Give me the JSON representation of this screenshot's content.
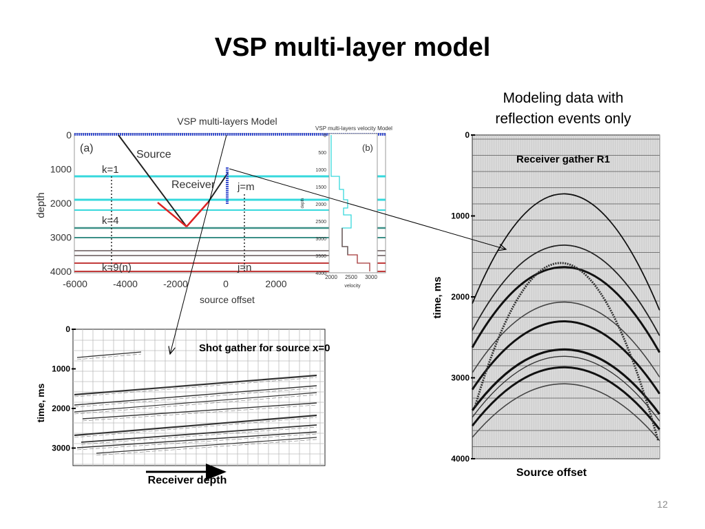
{
  "title": "VSP multi-layer model",
  "right_caption": {
    "line1": "Modeling data with",
    "line2": "reflection events only"
  },
  "page_number": "12",
  "model_plot": {
    "title": "VSP multi-layers Model",
    "panel_label": "(a)",
    "ylabel": "depth",
    "xlabel": "source offset",
    "y_ticks": [
      "0",
      "1000",
      "2000",
      "3000",
      "4000"
    ],
    "x_ticks": [
      "-6000",
      "-4000",
      "-2000",
      "0",
      "2000"
    ],
    "labels": {
      "source": "Source",
      "receiver": "Receiver",
      "k1": "k=1",
      "k4": "k=4",
      "k9": "k=9(n)",
      "jm": "j=m",
      "jn": "j=n"
    },
    "layer_colors": {
      "cyan": "#35d8dc",
      "teal": "#3a8f86",
      "gray": "#8a7f80",
      "red": "#c23a3a",
      "blue": "#3a4fcf"
    }
  },
  "velocity_plot": {
    "title": "VSP multi-layers velocity Model",
    "panel_label": "(b)",
    "ylabel": "depth",
    "xlabel": "velocity",
    "y_ticks": [
      "0",
      "500",
      "1000",
      "1500",
      "2000",
      "2500",
      "3000",
      "3500",
      "4000"
    ],
    "x_ticks": [
      "2000",
      "2500",
      "3000"
    ]
  },
  "shot_gather": {
    "title": "Shot gather for source x=0",
    "ylabel": "time, ms",
    "xlabel": "Receiver depth",
    "y_ticks": [
      "0",
      "1000",
      "2000",
      "3000"
    ]
  },
  "receiver_gather": {
    "title": "Receiver gather R1",
    "ylabel": "time, ms",
    "xlabel": "Source offset",
    "y_ticks": [
      "0",
      "1000",
      "2000",
      "3000",
      "4000"
    ]
  }
}
